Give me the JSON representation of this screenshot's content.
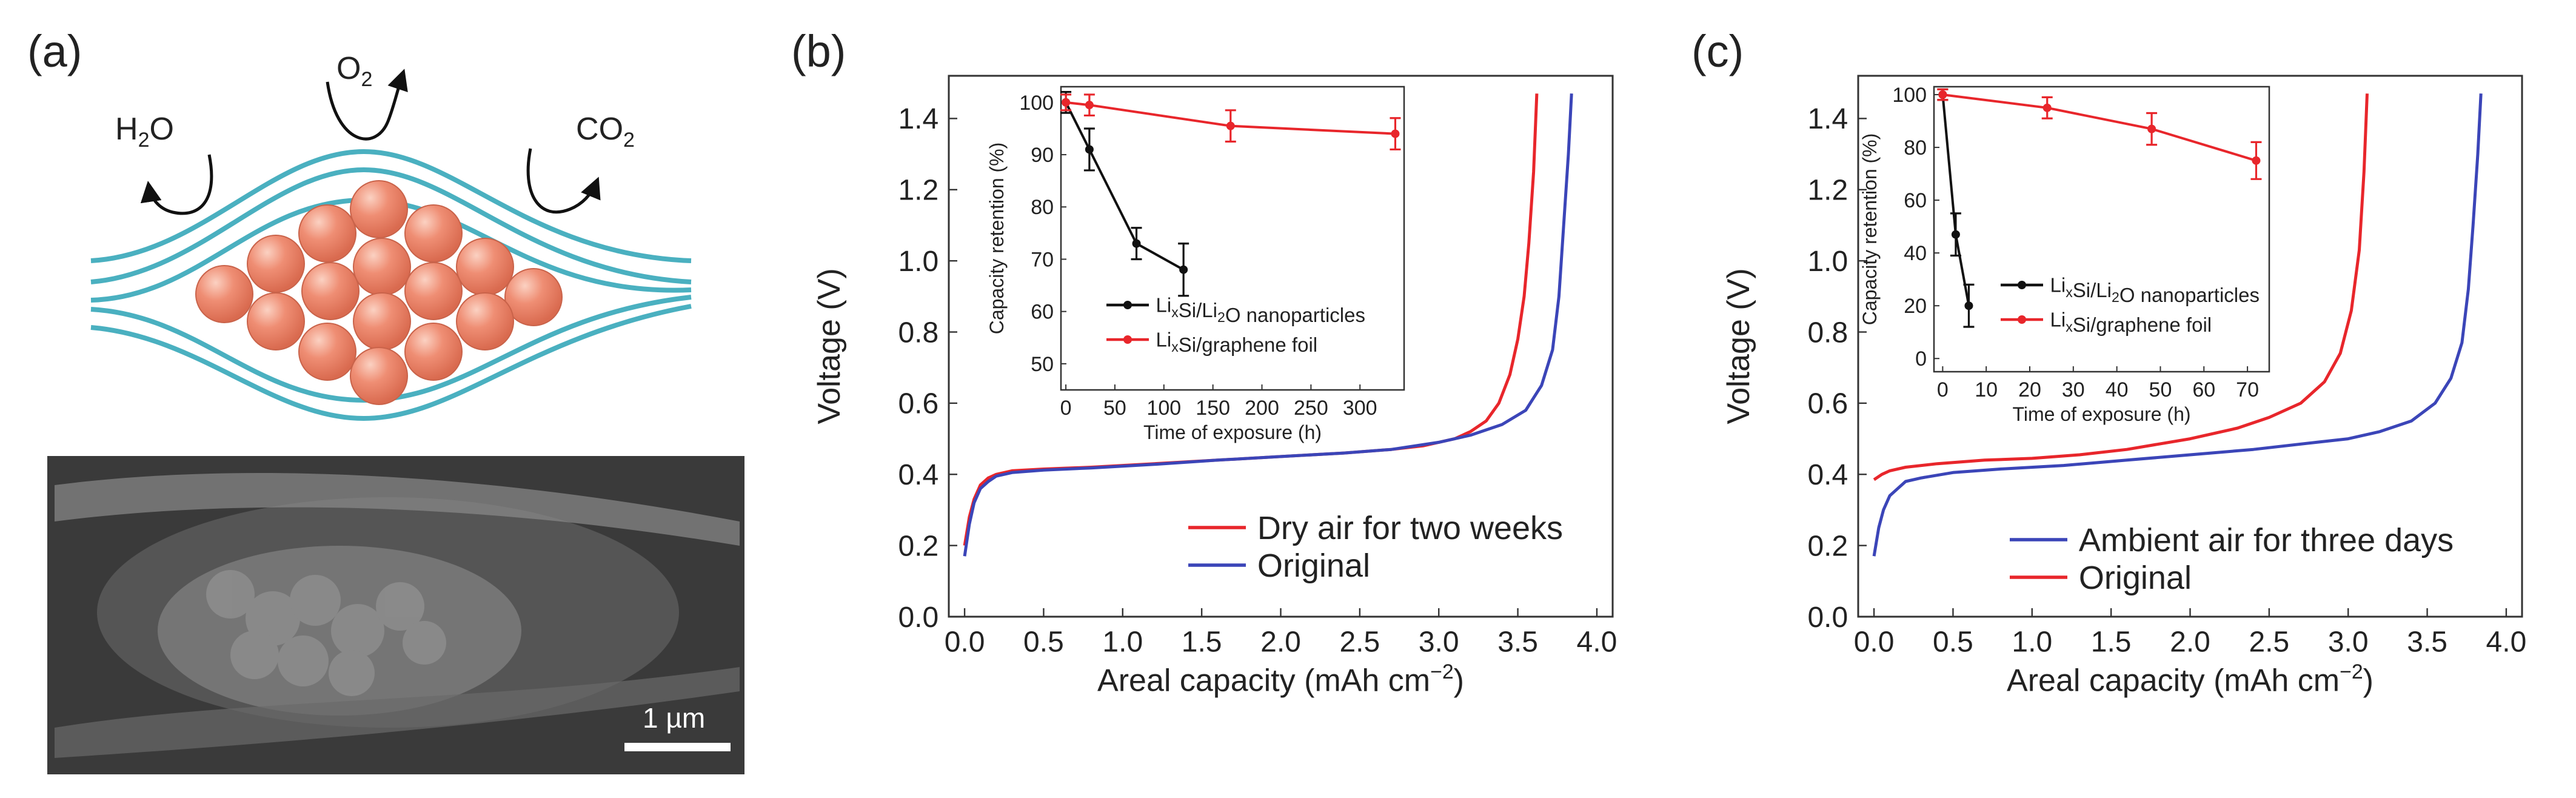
{
  "panels": {
    "a": {
      "label": "(a)",
      "molecules": {
        "water": "H2O",
        "oxygen": "O2",
        "carbon_dioxide": "CO2"
      },
      "scale_bar": "1 µm"
    },
    "b": {
      "label": "(b)"
    },
    "c": {
      "label": "(c)"
    }
  },
  "colors": {
    "red": "#e8262b",
    "blue": "#3b45b8",
    "black": "#111111",
    "shell": "#4ab0c0",
    "sphere": "#ef8e74",
    "axis": "#333333"
  },
  "chart_data": [
    {
      "id": "b-main",
      "type": "line",
      "xlabel": "Areal capacity (mAh cm−2)",
      "ylabel": "Voltage (V)",
      "xlim": [
        -0.1,
        4.1
      ],
      "ylim": [
        0.0,
        1.52
      ],
      "xticks": [
        0.0,
        0.5,
        1.0,
        1.5,
        2.0,
        2.5,
        3.0,
        3.5,
        4.0
      ],
      "xtick_labels": [
        "0.0",
        "0.5",
        "1.0",
        "1.5",
        "2.0",
        "2.5",
        "3.0",
        "3.5",
        "4.0"
      ],
      "yticks": [
        0.0,
        0.2,
        0.4,
        0.6,
        0.8,
        1.0,
        1.2,
        1.4
      ],
      "ytick_labels": [
        "0.0",
        "0.2",
        "0.4",
        "0.6",
        "0.8",
        "1.0",
        "1.2",
        "1.4"
      ],
      "legend_position": "bottom-right",
      "series": [
        {
          "name": "Dry air for two weeks",
          "color": "red",
          "x": [
            0.0,
            0.03,
            0.06,
            0.1,
            0.15,
            0.2,
            0.3,
            0.5,
            0.8,
            1.2,
            1.6,
            2.0,
            2.4,
            2.7,
            2.9,
            3.1,
            3.2,
            3.3,
            3.38,
            3.45,
            3.5,
            3.54,
            3.57,
            3.6,
            3.62
          ],
          "y": [
            0.2,
            0.28,
            0.33,
            0.37,
            0.39,
            0.4,
            0.41,
            0.415,
            0.42,
            0.43,
            0.44,
            0.45,
            0.46,
            0.47,
            0.48,
            0.5,
            0.52,
            0.55,
            0.6,
            0.68,
            0.78,
            0.9,
            1.05,
            1.25,
            1.47
          ]
        },
        {
          "name": "Original",
          "color": "blue",
          "x": [
            0.0,
            0.03,
            0.06,
            0.1,
            0.15,
            0.2,
            0.3,
            0.5,
            0.8,
            1.2,
            1.6,
            2.0,
            2.4,
            2.7,
            3.0,
            3.2,
            3.4,
            3.55,
            3.65,
            3.72,
            3.76,
            3.79,
            3.82,
            3.84
          ],
          "y": [
            0.17,
            0.26,
            0.32,
            0.36,
            0.38,
            0.395,
            0.405,
            0.412,
            0.418,
            0.428,
            0.44,
            0.45,
            0.46,
            0.47,
            0.49,
            0.51,
            0.54,
            0.58,
            0.65,
            0.75,
            0.9,
            1.1,
            1.3,
            1.47
          ]
        }
      ]
    },
    {
      "id": "b-inset",
      "type": "line",
      "xlabel": "Time of exposure (h)",
      "ylabel": "Capacity retention (%)",
      "xlim": [
        -5,
        345
      ],
      "ylim": [
        45,
        103
      ],
      "xticks": [
        0,
        50,
        100,
        150,
        200,
        250,
        300
      ],
      "xtick_labels": [
        "0",
        "50",
        "100",
        "150",
        "200",
        "250",
        "300"
      ],
      "yticks": [
        50,
        60,
        70,
        80,
        90,
        100
      ],
      "ytick_labels": [
        "50",
        "60",
        "70",
        "80",
        "90",
        "100"
      ],
      "legend_position": "bottom-right",
      "series": [
        {
          "name": "LixSi/Li2O nanoparticles",
          "color": "black",
          "x": [
            0,
            24,
            72,
            120
          ],
          "y": [
            100,
            91,
            73,
            68
          ],
          "err": [
            2,
            4,
            3,
            5
          ]
        },
        {
          "name": "LixSi/graphene foil",
          "color": "red",
          "x": [
            0,
            24,
            168,
            336
          ],
          "y": [
            100,
            99.5,
            95.5,
            94
          ],
          "err": [
            1.5,
            2,
            3,
            3
          ]
        }
      ]
    },
    {
      "id": "c-main",
      "type": "line",
      "xlabel": "Areal capacity (mAh cm−2)",
      "ylabel": "Voltage (V)",
      "xlim": [
        -0.1,
        4.1
      ],
      "ylim": [
        0.0,
        1.52
      ],
      "xticks": [
        0.0,
        0.5,
        1.0,
        1.5,
        2.0,
        2.5,
        3.0,
        3.5,
        4.0
      ],
      "xtick_labels": [
        "0.0",
        "0.5",
        "1.0",
        "1.5",
        "2.0",
        "2.5",
        "3.0",
        "3.5",
        "4.0"
      ],
      "yticks": [
        0.0,
        0.2,
        0.4,
        0.6,
        0.8,
        1.0,
        1.2,
        1.4
      ],
      "ytick_labels": [
        "0.0",
        "0.2",
        "0.4",
        "0.6",
        "0.8",
        "1.0",
        "1.2",
        "1.4"
      ],
      "legend_position": "bottom-right",
      "series": [
        {
          "name": "Ambient air for three days",
          "color": "blue",
          "x": [
            0.0,
            0.03,
            0.06,
            0.1,
            0.15,
            0.2,
            0.3,
            0.5,
            0.8,
            1.2,
            1.6,
            2.0,
            2.4,
            2.8,
            3.0,
            3.2,
            3.4,
            3.55,
            3.65,
            3.72,
            3.76,
            3.79,
            3.82,
            3.84
          ],
          "y": [
            0.17,
            0.25,
            0.3,
            0.34,
            0.36,
            0.38,
            0.39,
            0.405,
            0.415,
            0.425,
            0.44,
            0.455,
            0.47,
            0.49,
            0.5,
            0.52,
            0.55,
            0.6,
            0.67,
            0.77,
            0.92,
            1.1,
            1.3,
            1.47
          ]
        },
        {
          "name": "Original",
          "color": "red",
          "x": [
            0.0,
            0.05,
            0.1,
            0.2,
            0.4,
            0.7,
            1.0,
            1.3,
            1.6,
            2.0,
            2.3,
            2.5,
            2.7,
            2.85,
            2.95,
            3.02,
            3.07,
            3.1,
            3.12
          ],
          "y": [
            0.385,
            0.4,
            0.41,
            0.42,
            0.43,
            0.44,
            0.445,
            0.455,
            0.47,
            0.5,
            0.53,
            0.56,
            0.6,
            0.66,
            0.74,
            0.86,
            1.03,
            1.25,
            1.47
          ]
        }
      ]
    },
    {
      "id": "c-inset",
      "type": "line",
      "xlabel": "Time of exposure (h)",
      "ylabel": "Capacity retention (%)",
      "xlim": [
        -2,
        75
      ],
      "ylim": [
        -5,
        103
      ],
      "xticks": [
        0,
        10,
        20,
        30,
        40,
        50,
        60,
        70
      ],
      "xtick_labels": [
        "0",
        "10",
        "20",
        "30",
        "40",
        "50",
        "60",
        "70"
      ],
      "yticks": [
        0,
        20,
        40,
        60,
        80,
        100
      ],
      "ytick_labels": [
        "0",
        "20",
        "40",
        "60",
        "80",
        "100"
      ],
      "legend_position": "bottom-right",
      "series": [
        {
          "name": "LixSi/Li2O nanoparticles",
          "color": "black",
          "x": [
            0,
            3,
            6
          ],
          "y": [
            100,
            47,
            20
          ],
          "err": [
            2,
            8,
            8
          ]
        },
        {
          "name": "LixSi/graphene foil",
          "color": "red",
          "x": [
            0,
            24,
            48,
            72
          ],
          "y": [
            100,
            95,
            87,
            75
          ],
          "err": [
            2,
            4,
            6,
            7
          ]
        }
      ]
    }
  ]
}
